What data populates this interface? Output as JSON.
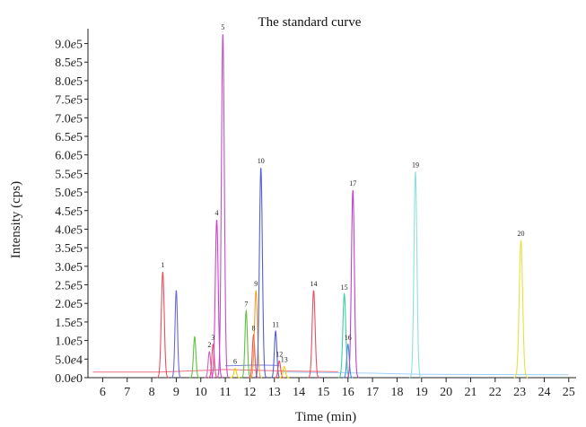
{
  "chart_data": {
    "type": "line",
    "title": "The standard curve",
    "xlabel": "Time (min)",
    "ylabel": "Intensity (cps)",
    "xlim": [
      5.4,
      25.3
    ],
    "ylim": [
      0,
      940000
    ],
    "x_ticks": [
      "6",
      "7",
      "8",
      "9",
      "10",
      "11",
      "12",
      "13",
      "14",
      "15",
      "16",
      "17",
      "18",
      "19",
      "20",
      "21",
      "22",
      "23",
      "24",
      "25"
    ],
    "y_ticks": [
      {
        "value": 0,
        "label": "0.0e0"
      },
      {
        "value": 50000,
        "label": "5.0e4"
      },
      {
        "value": 100000,
        "label": "1.0e5"
      },
      {
        "value": 150000,
        "label": "1.5e5"
      },
      {
        "value": 200000,
        "label": "2.0e5"
      },
      {
        "value": 250000,
        "label": "2.5e5"
      },
      {
        "value": 300000,
        "label": "3.0e5"
      },
      {
        "value": 350000,
        "label": "3.5e5"
      },
      {
        "value": 400000,
        "label": "4.0e5"
      },
      {
        "value": 450000,
        "label": "4.5e5"
      },
      {
        "value": 500000,
        "label": "5.0e5"
      },
      {
        "value": 550000,
        "label": "5.5e5"
      },
      {
        "value": 600000,
        "label": "6.0e5"
      },
      {
        "value": 650000,
        "label": "6.5e5"
      },
      {
        "value": 700000,
        "label": "7.0e5"
      },
      {
        "value": 750000,
        "label": "7.5e5"
      },
      {
        "value": 800000,
        "label": "8.0e5"
      },
      {
        "value": 850000,
        "label": "8.5e5"
      },
      {
        "value": 900000,
        "label": "9.0e5"
      }
    ],
    "baselines": [
      {
        "color": "#f07080",
        "x": [
          5.6,
          8.3,
          10.3,
          11.0,
          13.3,
          15.6
        ],
        "y": [
          15000,
          15000,
          20000,
          22000,
          18000,
          16000
        ]
      },
      {
        "color": "#8080e0",
        "x": [
          11.0,
          12.3,
          13.2
        ],
        "y": [
          32000,
          34000,
          33000
        ]
      },
      {
        "color": "#a0d0ff",
        "x": [
          13.3,
          17.0,
          18.3,
          19.0,
          25.0
        ],
        "y": [
          15000,
          12000,
          10000,
          9000,
          8000
        ]
      }
    ],
    "peaks": [
      {
        "label": "1",
        "x": 8.45,
        "y": 285000,
        "width": 0.06,
        "color": "#e85060",
        "show_label": true
      },
      {
        "label": "",
        "x": 9.0,
        "y": 235000,
        "width": 0.05,
        "color": "#6a6ad8",
        "show_label": false
      },
      {
        "label": "",
        "x": 9.75,
        "y": 110000,
        "width": 0.05,
        "color": "#60c040",
        "show_label": false
      },
      {
        "label": "2",
        "x": 10.35,
        "y": 70000,
        "width": 0.05,
        "color": "#d060c0",
        "show_label": true
      },
      {
        "label": "3",
        "x": 10.5,
        "y": 90000,
        "width": 0.05,
        "color": "#e85060",
        "show_label": true
      },
      {
        "label": "4",
        "x": 10.65,
        "y": 425000,
        "width": 0.06,
        "color": "#d040d0",
        "show_label": true
      },
      {
        "label": "5",
        "x": 10.9,
        "y": 925000,
        "width": 0.06,
        "color": "#c050c8",
        "show_label": true
      },
      {
        "label": "6",
        "x": 11.4,
        "y": 25000,
        "width": 0.05,
        "color": "#f0d000",
        "show_label": true
      },
      {
        "label": "7",
        "x": 11.85,
        "y": 180000,
        "width": 0.05,
        "color": "#60c040",
        "show_label": true
      },
      {
        "label": "8",
        "x": 12.15,
        "y": 115000,
        "width": 0.05,
        "color": "#e85060",
        "show_label": true
      },
      {
        "label": "9",
        "x": 12.25,
        "y": 235000,
        "width": 0.06,
        "color": "#f0a030",
        "show_label": true
      },
      {
        "label": "10",
        "x": 12.45,
        "y": 565000,
        "width": 0.06,
        "color": "#5060d0",
        "show_label": true
      },
      {
        "label": "11",
        "x": 13.05,
        "y": 125000,
        "width": 0.05,
        "color": "#5060d0",
        "show_label": true
      },
      {
        "label": "12",
        "x": 13.2,
        "y": 45000,
        "width": 0.05,
        "color": "#e85060",
        "show_label": true
      },
      {
        "label": "13",
        "x": 13.4,
        "y": 30000,
        "width": 0.05,
        "color": "#f0d000",
        "show_label": true
      },
      {
        "label": "14",
        "x": 14.6,
        "y": 235000,
        "width": 0.06,
        "color": "#e85060",
        "show_label": true
      },
      {
        "label": "15",
        "x": 15.85,
        "y": 225000,
        "width": 0.06,
        "color": "#40d0a0",
        "show_label": true
      },
      {
        "label": "16",
        "x": 16.0,
        "y": 90000,
        "width": 0.05,
        "color": "#4090e0",
        "show_label": true
      },
      {
        "label": "17",
        "x": 16.2,
        "y": 505000,
        "width": 0.06,
        "color": "#c040c8",
        "show_label": true
      },
      {
        "label": "19",
        "x": 18.75,
        "y": 555000,
        "width": 0.06,
        "color": "#90e0d8",
        "show_label": true
      },
      {
        "label": "20",
        "x": 23.05,
        "y": 370000,
        "width": 0.07,
        "color": "#e8e040",
        "show_label": true
      }
    ]
  }
}
